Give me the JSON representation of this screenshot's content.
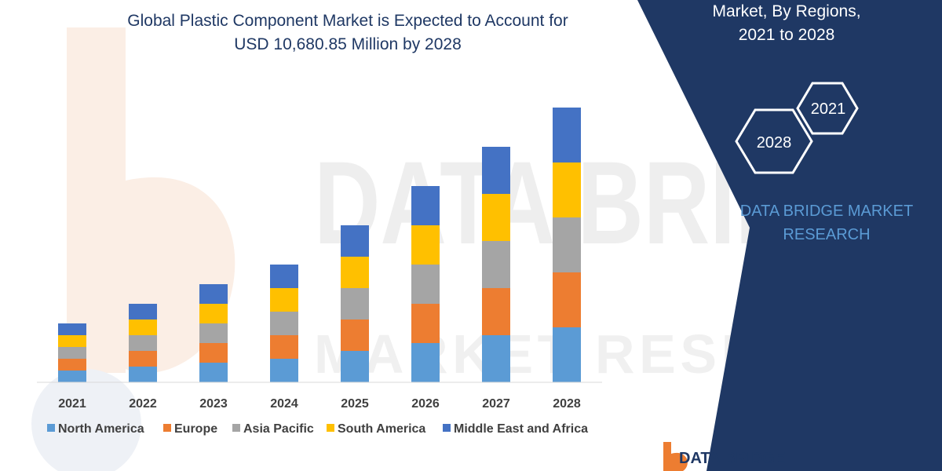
{
  "chart_title": {
    "line1": "Global Plastic Component Market is Expected to Account for",
    "line2": "USD 10,680.85 Million by 2028"
  },
  "side_panel": {
    "heading_line1": "Market, By Regions,",
    "heading_line2": "2021 to 2028",
    "hex_badge_start": "2021",
    "hex_badge_end": "2028",
    "company_line1": "DATA BRIDGE MARKET",
    "company_line2": "RESEARCH"
  },
  "logo": {
    "text": "DATA BRIDGE"
  },
  "watermark": {
    "line1": "DATA BRIDGE",
    "line2": "MARKET RESEARCH"
  },
  "colors": {
    "panel_navy": "#1f3864",
    "panel_text": "#ffffff",
    "company_text": "#5b9bd5",
    "title_text": "#1f3864",
    "axis_text": "#404040",
    "watermark": "#e9e9e9",
    "logo_orange": "#ed7d31",
    "logo_navy": "#1f3864"
  },
  "chart_data": {
    "type": "bar",
    "stacked": true,
    "categories": [
      "2021",
      "2022",
      "2023",
      "2024",
      "2025",
      "2026",
      "2027",
      "2028"
    ],
    "series": [
      {
        "name": "North America",
        "color": "#5b9bd5",
        "values": [
          3,
          4,
          5,
          6,
          8,
          10,
          12,
          14
        ]
      },
      {
        "name": "Europe",
        "color": "#ed7d31",
        "values": [
          3,
          4,
          5,
          6,
          8,
          10,
          12,
          14
        ]
      },
      {
        "name": "Asia Pacific",
        "color": "#a5a5a5",
        "values": [
          3,
          4,
          5,
          6,
          8,
          10,
          12,
          14
        ]
      },
      {
        "name": "South America",
        "color": "#ffc000",
        "values": [
          3,
          4,
          5,
          6,
          8,
          10,
          12,
          14
        ]
      },
      {
        "name": "Middle East and Africa",
        "color": "#4472c4",
        "values": [
          3,
          4,
          5,
          6,
          8,
          10,
          12,
          14
        ]
      }
    ],
    "ylim": [
      0,
      70
    ],
    "grid": false,
    "legend_position": "bottom"
  }
}
